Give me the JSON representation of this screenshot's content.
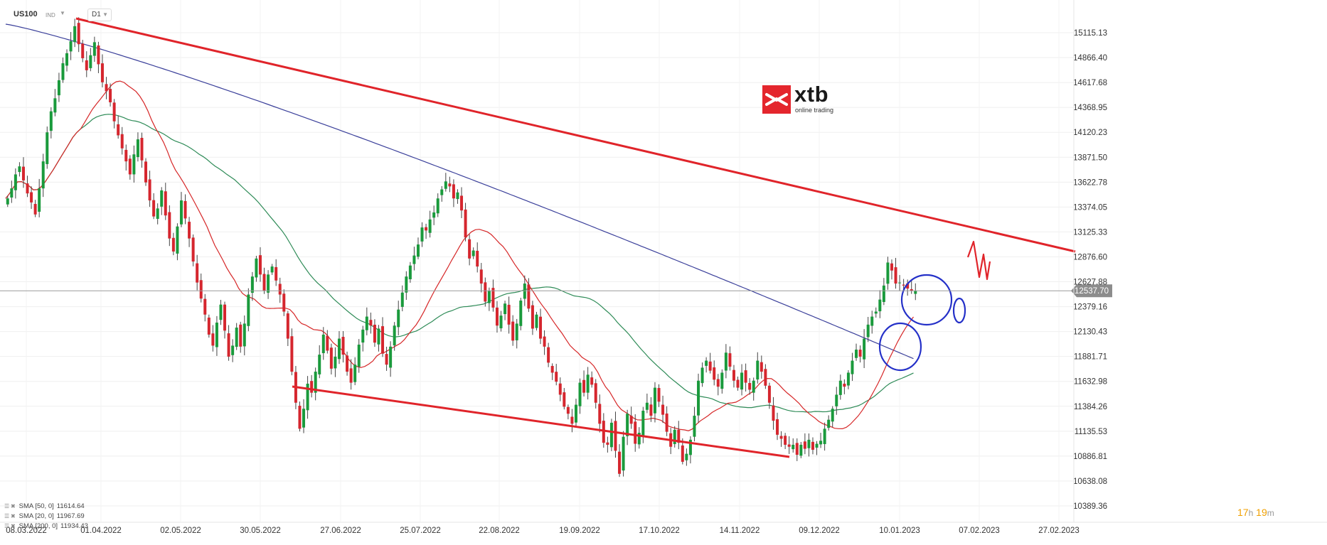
{
  "header": {
    "symbol": "US100",
    "market": "IND",
    "timeframe": "D1"
  },
  "logo": {
    "word": "xtb",
    "tagline": "online trading"
  },
  "legend": [
    {
      "label": "SMA",
      "params": "[50, 0]",
      "value": "11614.64",
      "color": "#2e8b57"
    },
    {
      "label": "SMA",
      "params": "[20, 0]",
      "value": "11967.69",
      "color": "#d62728"
    },
    {
      "label": "SMA",
      "params": "[200, 0]",
      "value": "11934.43",
      "color": "#3a3f9a"
    }
  ],
  "timer": {
    "hours": "17",
    "h_unit": "h",
    "minutes": "19",
    "m_unit": "m"
  },
  "chart_data": {
    "type": "candlestick",
    "symbol": "US100",
    "timeframe": "D1",
    "y_ticks": [
      "15115.13",
      "14866.40",
      "14617.68",
      "14368.95",
      "14120.23",
      "13871.50",
      "13622.78",
      "13374.05",
      "13125.33",
      "12876.60",
      "12627.88",
      "12379.16",
      "12130.43",
      "11881.71",
      "11632.98",
      "11384.26",
      "11135.53",
      "10886.81",
      "10638.08",
      "10389.36"
    ],
    "x_ticks": [
      "08.03.2022",
      "01.04.2022",
      "02.05.2022",
      "30.05.2022",
      "27.06.2022",
      "25.07.2022",
      "22.08.2022",
      "19.09.2022",
      "17.10.2022",
      "14.11.2022",
      "09.12.2022",
      "10.01.2023",
      "07.02.2023",
      "27.02.2023"
    ],
    "ylim": [
      10389.36,
      15115.13
    ],
    "last_price": "12537.70",
    "closes": [
      13460,
      13560,
      13700,
      13780,
      13640,
      13510,
      13420,
      13300,
      13560,
      13830,
      14120,
      14330,
      14460,
      14640,
      14810,
      14910,
      15030,
      15180,
      15000,
      14860,
      14740,
      14890,
      15020,
      14800,
      14620,
      14530,
      14420,
      14230,
      14090,
      13960,
      13830,
      13700,
      13900,
      14050,
      13840,
      13620,
      13440,
      13280,
      13360,
      13540,
      13290,
      13060,
      12930,
      13180,
      13440,
      13260,
      13060,
      12830,
      12620,
      12460,
      12300,
      12100,
      11990,
      12220,
      12400,
      12140,
      11880,
      11990,
      12170,
      11980,
      12210,
      12500,
      12680,
      12860,
      12700,
      12540,
      12700,
      12780,
      12640,
      12500,
      12330,
      12060,
      11730,
      11420,
      11160,
      11360,
      11610,
      11520,
      11730,
      11900,
      12100,
      11940,
      11760,
      11880,
      12060,
      11900,
      11730,
      11620,
      11800,
      12000,
      12150,
      12280,
      12190,
      12020,
      12160,
      11910,
      11800,
      11980,
      12190,
      12350,
      12520,
      12680,
      12790,
      12890,
      13000,
      13170,
      13140,
      13250,
      13320,
      13460,
      13550,
      13630,
      13580,
      13460,
      13520,
      13340,
      13070,
      12860,
      12940,
      12780,
      12610,
      12430,
      12540,
      12370,
      12190,
      12290,
      12410,
      12200,
      12040,
      12210,
      12440,
      12610,
      12360,
      12160,
      12300,
      12060,
      11980,
      11820,
      11720,
      11630,
      11500,
      11380,
      11310,
      11210,
      11400,
      11620,
      11520,
      11700,
      11600,
      11420,
      11210,
      11020,
      11000,
      11220,
      10940,
      10710,
      11080,
      11310,
      11210,
      11010,
      11120,
      11340,
      11420,
      11290,
      11570,
      11430,
      11300,
      11130,
      10980,
      11150,
      11020,
      10830,
      10910,
      11050,
      11290,
      11640,
      11770,
      11840,
      11740,
      11650,
      11580,
      11720,
      11920,
      11780,
      11640,
      11570,
      11720,
      11620,
      11550,
      11640,
      11840,
      11730,
      11590,
      11420,
      11240,
      11100,
      11060,
      11000,
      10980,
      11000,
      10900,
      11000,
      10960,
      11050,
      10950,
      11010,
      11040,
      11160,
      11250,
      11360,
      11500,
      11640,
      11580,
      11720,
      11840,
      11950,
      11880,
      12060,
      12200,
      12280,
      12330,
      12450,
      12590,
      12820,
      12740,
      12610,
      12620,
      12590,
      12560,
      12540,
      12538
    ]
  }
}
